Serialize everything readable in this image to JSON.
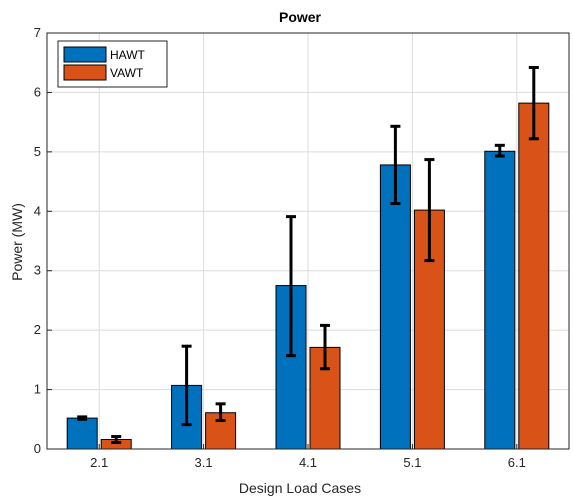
{
  "chart_data": {
    "type": "bar",
    "title": "Power",
    "xlabel": "Design Load Cases",
    "ylabel": "Power (MW)",
    "categories": [
      "2.1",
      "3.1",
      "4.1",
      "5.1",
      "6.1"
    ],
    "ylim": [
      0,
      7
    ],
    "yticks": [
      "0",
      "1",
      "2",
      "3",
      "4",
      "5",
      "6",
      "7"
    ],
    "grid": true,
    "legend_position": "top-left",
    "series": [
      {
        "name": "HAWT",
        "color": "#0072BD",
        "values": [
          0.52,
          1.07,
          2.75,
          4.78,
          5.01
        ],
        "error_low": [
          0.5,
          0.41,
          1.57,
          4.13,
          4.93
        ],
        "error_high": [
          0.54,
          1.73,
          3.91,
          5.43,
          5.11
        ]
      },
      {
        "name": "VAWT",
        "color": "#D95319",
        "values": [
          0.16,
          0.61,
          1.71,
          4.02,
          5.82
        ],
        "error_low": [
          0.11,
          0.48,
          1.35,
          3.17,
          5.22
        ],
        "error_high": [
          0.21,
          0.76,
          2.08,
          4.87,
          6.42
        ]
      }
    ]
  }
}
